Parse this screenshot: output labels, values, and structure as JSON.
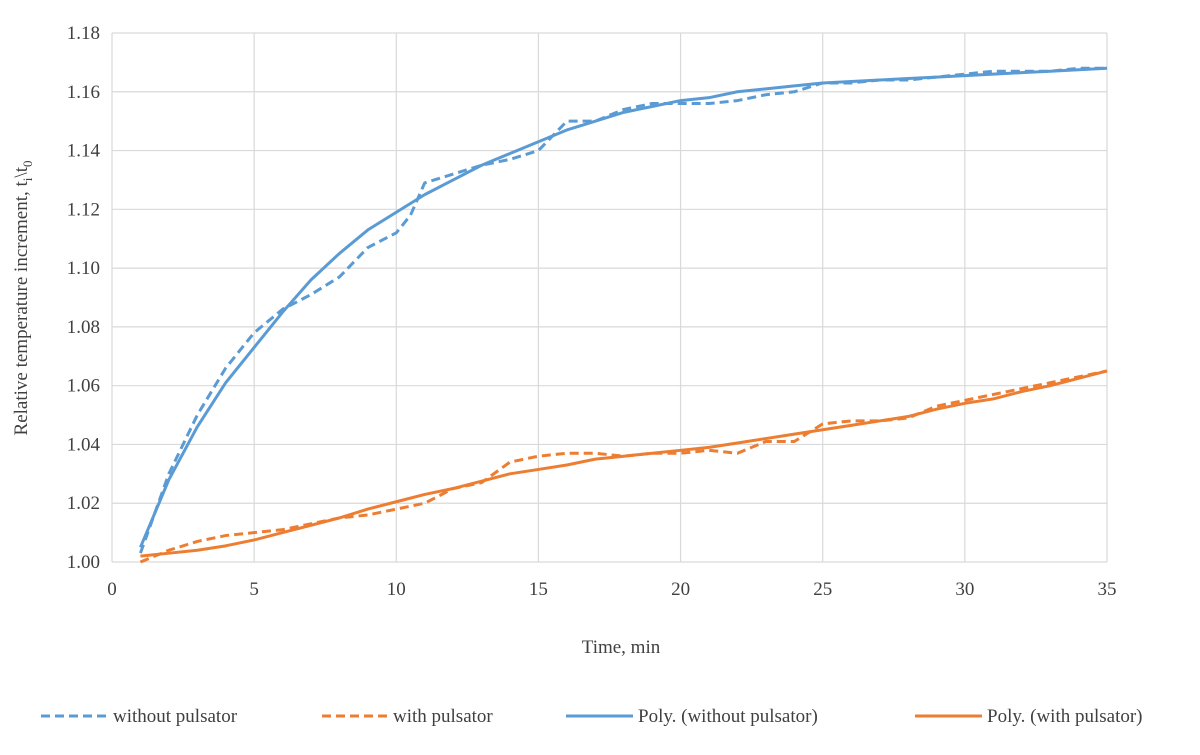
{
  "chart_data": {
    "type": "line",
    "title": "",
    "xlabel": "Time, min",
    "ylabel_main": "Relative temperature increment, t",
    "ylabel_sub1": "i",
    "ylabel_mid": "\\t",
    "ylabel_sub2": "0",
    "xlim": [
      0,
      35
    ],
    "ylim": [
      1.0,
      1.18
    ],
    "grid": true,
    "legend_position": "bottom",
    "x_ticks": [
      "0",
      "5",
      "10",
      "15",
      "20",
      "25",
      "30",
      "35"
    ],
    "y_ticks": [
      "1.00",
      "1.02",
      "1.04",
      "1.06",
      "1.08",
      "1.10",
      "1.12",
      "1.14",
      "1.16",
      "1.18"
    ],
    "series": [
      {
        "name": "without pulsator",
        "color": "#5b9bd5",
        "style": "dashed",
        "x": [
          1,
          2,
          3,
          4,
          5,
          6,
          7,
          8,
          9,
          10,
          10.5,
          11,
          12,
          13,
          14,
          15,
          15.5,
          16,
          17,
          18,
          19,
          20,
          21,
          22,
          23,
          24,
          25,
          26,
          27,
          28,
          29,
          30,
          31,
          32,
          33,
          34,
          35
        ],
        "y": [
          1.003,
          1.03,
          1.05,
          1.066,
          1.078,
          1.086,
          1.091,
          1.097,
          1.107,
          1.112,
          1.118,
          1.129,
          1.132,
          1.135,
          1.137,
          1.14,
          1.145,
          1.15,
          1.15,
          1.154,
          1.156,
          1.156,
          1.156,
          1.157,
          1.159,
          1.16,
          1.163,
          1.163,
          1.164,
          1.164,
          1.165,
          1.166,
          1.167,
          1.167,
          1.167,
          1.168,
          1.168
        ]
      },
      {
        "name": "with pulsator",
        "color": "#ed7d31",
        "style": "dashed",
        "x": [
          1,
          2,
          3,
          4,
          5,
          6,
          7,
          8,
          9,
          10,
          11,
          12,
          13,
          14,
          15,
          16,
          17,
          18,
          19,
          20,
          21,
          22,
          23,
          24,
          25,
          26,
          27,
          28,
          29,
          30,
          31,
          32,
          33,
          34,
          35
        ],
        "y": [
          1.0,
          1.004,
          1.007,
          1.009,
          1.01,
          1.011,
          1.013,
          1.015,
          1.016,
          1.018,
          1.02,
          1.025,
          1.027,
          1.034,
          1.036,
          1.037,
          1.037,
          1.036,
          1.037,
          1.037,
          1.038,
          1.037,
          1.041,
          1.041,
          1.047,
          1.048,
          1.048,
          1.049,
          1.053,
          1.055,
          1.057,
          1.059,
          1.061,
          1.063,
          1.065
        ]
      },
      {
        "name": "Poly. (without pulsator)",
        "color": "#5b9bd5",
        "style": "solid",
        "x": [
          1,
          2,
          3,
          4,
          5,
          6,
          7,
          8,
          9,
          10,
          11,
          12,
          13,
          14,
          15,
          16,
          17,
          18,
          19,
          20,
          21,
          22,
          23,
          24,
          25,
          26,
          27,
          28,
          29,
          30,
          31,
          32,
          33,
          34,
          35
        ],
        "y": [
          1.005,
          1.028,
          1.046,
          1.061,
          1.073,
          1.085,
          1.096,
          1.105,
          1.113,
          1.119,
          1.125,
          1.13,
          1.135,
          1.139,
          1.143,
          1.147,
          1.15,
          1.153,
          1.155,
          1.157,
          1.158,
          1.16,
          1.161,
          1.162,
          1.163,
          1.1635,
          1.164,
          1.1645,
          1.165,
          1.1655,
          1.166,
          1.1665,
          1.167,
          1.1675,
          1.168
        ]
      },
      {
        "name": "Poly. (with pulsator)",
        "color": "#ed7d31",
        "style": "solid",
        "x": [
          1,
          2,
          3,
          4,
          5,
          6,
          7,
          8,
          9,
          10,
          11,
          12,
          13,
          14,
          15,
          16,
          17,
          18,
          19,
          20,
          21,
          22,
          23,
          24,
          25,
          26,
          27,
          28,
          29,
          30,
          31,
          32,
          33,
          34,
          35
        ],
        "y": [
          1.002,
          1.003,
          1.004,
          1.0055,
          1.0075,
          1.01,
          1.0125,
          1.015,
          1.018,
          1.0205,
          1.023,
          1.025,
          1.0275,
          1.03,
          1.0315,
          1.033,
          1.035,
          1.036,
          1.037,
          1.038,
          1.039,
          1.0405,
          1.042,
          1.0435,
          1.045,
          1.0465,
          1.048,
          1.0495,
          1.052,
          1.054,
          1.0555,
          1.058,
          1.06,
          1.0625,
          1.065
        ]
      }
    ]
  }
}
